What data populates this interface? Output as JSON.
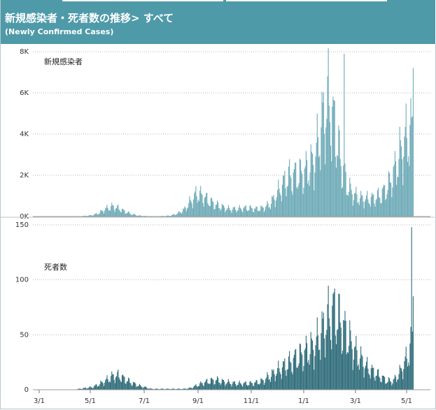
{
  "header": {
    "title": "新規感染者・死者数の推移> すべて",
    "subtitle": "(Newly Confirmed Cases)"
  },
  "colors": {
    "header_bg": "#4e9aa9",
    "cases_fill": "#72adb9",
    "deaths_fill": "#35707e",
    "grid": "#b8b8b8"
  },
  "chart_data": [
    {
      "type": "bar",
      "panel_label": "新規感染者",
      "x": [
        "2020-01-16",
        "2021-05-10"
      ],
      "x_ticks": [
        "3/1",
        "5/1",
        "7/1",
        "9/1",
        "11/1",
        "1/1",
        "3/1",
        "5/1"
      ],
      "ylim": [
        0,
        8000
      ],
      "y_ticks": [
        "0K",
        "2K",
        "4K",
        "6K",
        "8K"
      ],
      "grid": true,
      "series": [
        {
          "values_approx_weekly_avg": [
            0,
            0,
            0,
            0,
            0,
            0,
            5,
            20,
            40,
            80,
            200,
            450,
            600,
            500,
            300,
            150,
            60,
            30,
            20,
            20,
            30,
            60,
            180,
            400,
            900,
            1400,
            1200,
            900,
            700,
            550,
            450,
            450,
            500,
            500,
            450,
            500,
            700,
            1200,
            1900,
            2400,
            2500,
            2600,
            2900,
            3500,
            5500,
            7000,
            5500,
            3200,
            1800,
            1300,
            1100,
            1050,
            1100,
            1300,
            1700,
            2600,
            3800,
            4800,
            5300
          ],
          "peak": 7900,
          "last": 7200
        }
      ]
    },
    {
      "type": "bar",
      "panel_label": "死者数",
      "x": [
        "2020-01-16",
        "2021-05-10"
      ],
      "x_ticks": [
        "3/1",
        "5/1",
        "7/1",
        "9/1",
        "11/1",
        "1/1",
        "3/1",
        "5/1"
      ],
      "ylim": [
        0,
        150
      ],
      "y_ticks": [
        "0",
        "50",
        "100",
        "150"
      ],
      "grid": true,
      "series": [
        {
          "values_approx_weekly_avg": [
            0,
            0,
            0,
            0,
            0,
            0,
            0,
            1,
            2,
            3,
            6,
            10,
            15,
            16,
            12,
            8,
            5,
            3,
            1,
            1,
            1,
            1,
            1,
            1,
            2,
            5,
            8,
            10,
            11,
            9,
            8,
            7,
            7,
            7,
            8,
            10,
            15,
            20,
            25,
            30,
            35,
            40,
            45,
            50,
            65,
            80,
            90,
            75,
            60,
            45,
            35,
            25,
            20,
            15,
            10,
            10,
            20,
            35,
            60
          ],
          "peak": 148,
          "last": 85
        }
      ]
    }
  ]
}
